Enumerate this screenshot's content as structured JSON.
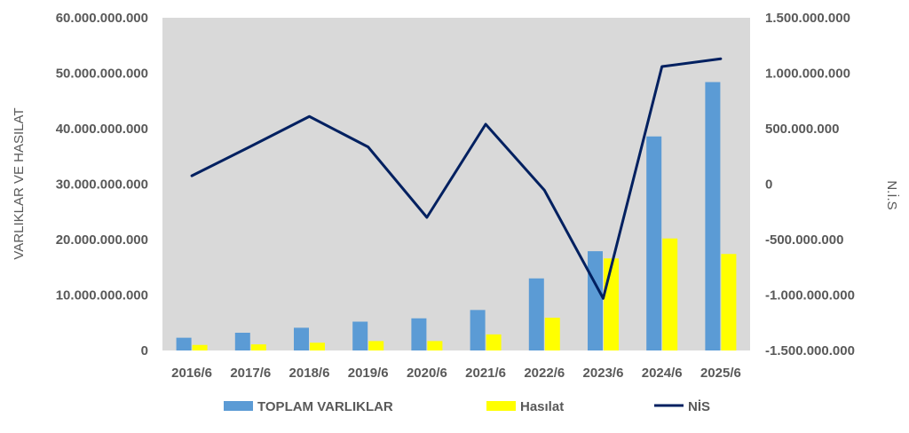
{
  "chart_data": {
    "type": "bar",
    "categories": [
      "2016/6",
      "2017/6",
      "2018/6",
      "2019/6",
      "2020/6",
      "2021/6",
      "2022/6",
      "2023/6",
      "2024/6",
      "2025/6"
    ],
    "series": [
      {
        "name": "TOPLAM VARLIKLAR",
        "kind": "bar",
        "axis": "left",
        "color": "#5B9BD5",
        "values": [
          2300000000,
          3200000000,
          4100000000,
          5200000000,
          5800000000,
          7300000000,
          13000000000,
          17900000000,
          38600000000,
          48400000000
        ]
      },
      {
        "name": "Hasılat",
        "kind": "bar",
        "axis": "left",
        "color": "#FFFF00",
        "values": [
          1000000000,
          1100000000,
          1400000000,
          1700000000,
          1700000000,
          2900000000,
          5900000000,
          16600000000,
          20200000000,
          17400000000
        ]
      },
      {
        "name": "NİS",
        "kind": "line",
        "axis": "right",
        "color": "#002060",
        "values": [
          75000000,
          340000000,
          610000000,
          335000000,
          -300000000,
          540000000,
          -55000000,
          -1030000000,
          1060000000,
          1130000000
        ]
      }
    ],
    "ylabel": "VARLIKLAR VE HASILAT",
    "y2label": "N.İ.S",
    "ylim": [
      0,
      60000000000
    ],
    "y2lim": [
      -1500000000,
      1500000000
    ],
    "yticks": [
      "0",
      "10.000.000.000",
      "20.000.000.000",
      "30.000.000.000",
      "40.000.000.000",
      "50.000.000.000",
      "60.000.000.000"
    ],
    "y2ticks": [
      "-1.500.000.000",
      "-1.000.000.000",
      "-500.000.000",
      "0",
      "500.000.000",
      "1.000.000.000",
      "1.500.000.000"
    ],
    "grid": false,
    "plot_background": "#D9D9D9",
    "legend_position": "bottom"
  }
}
